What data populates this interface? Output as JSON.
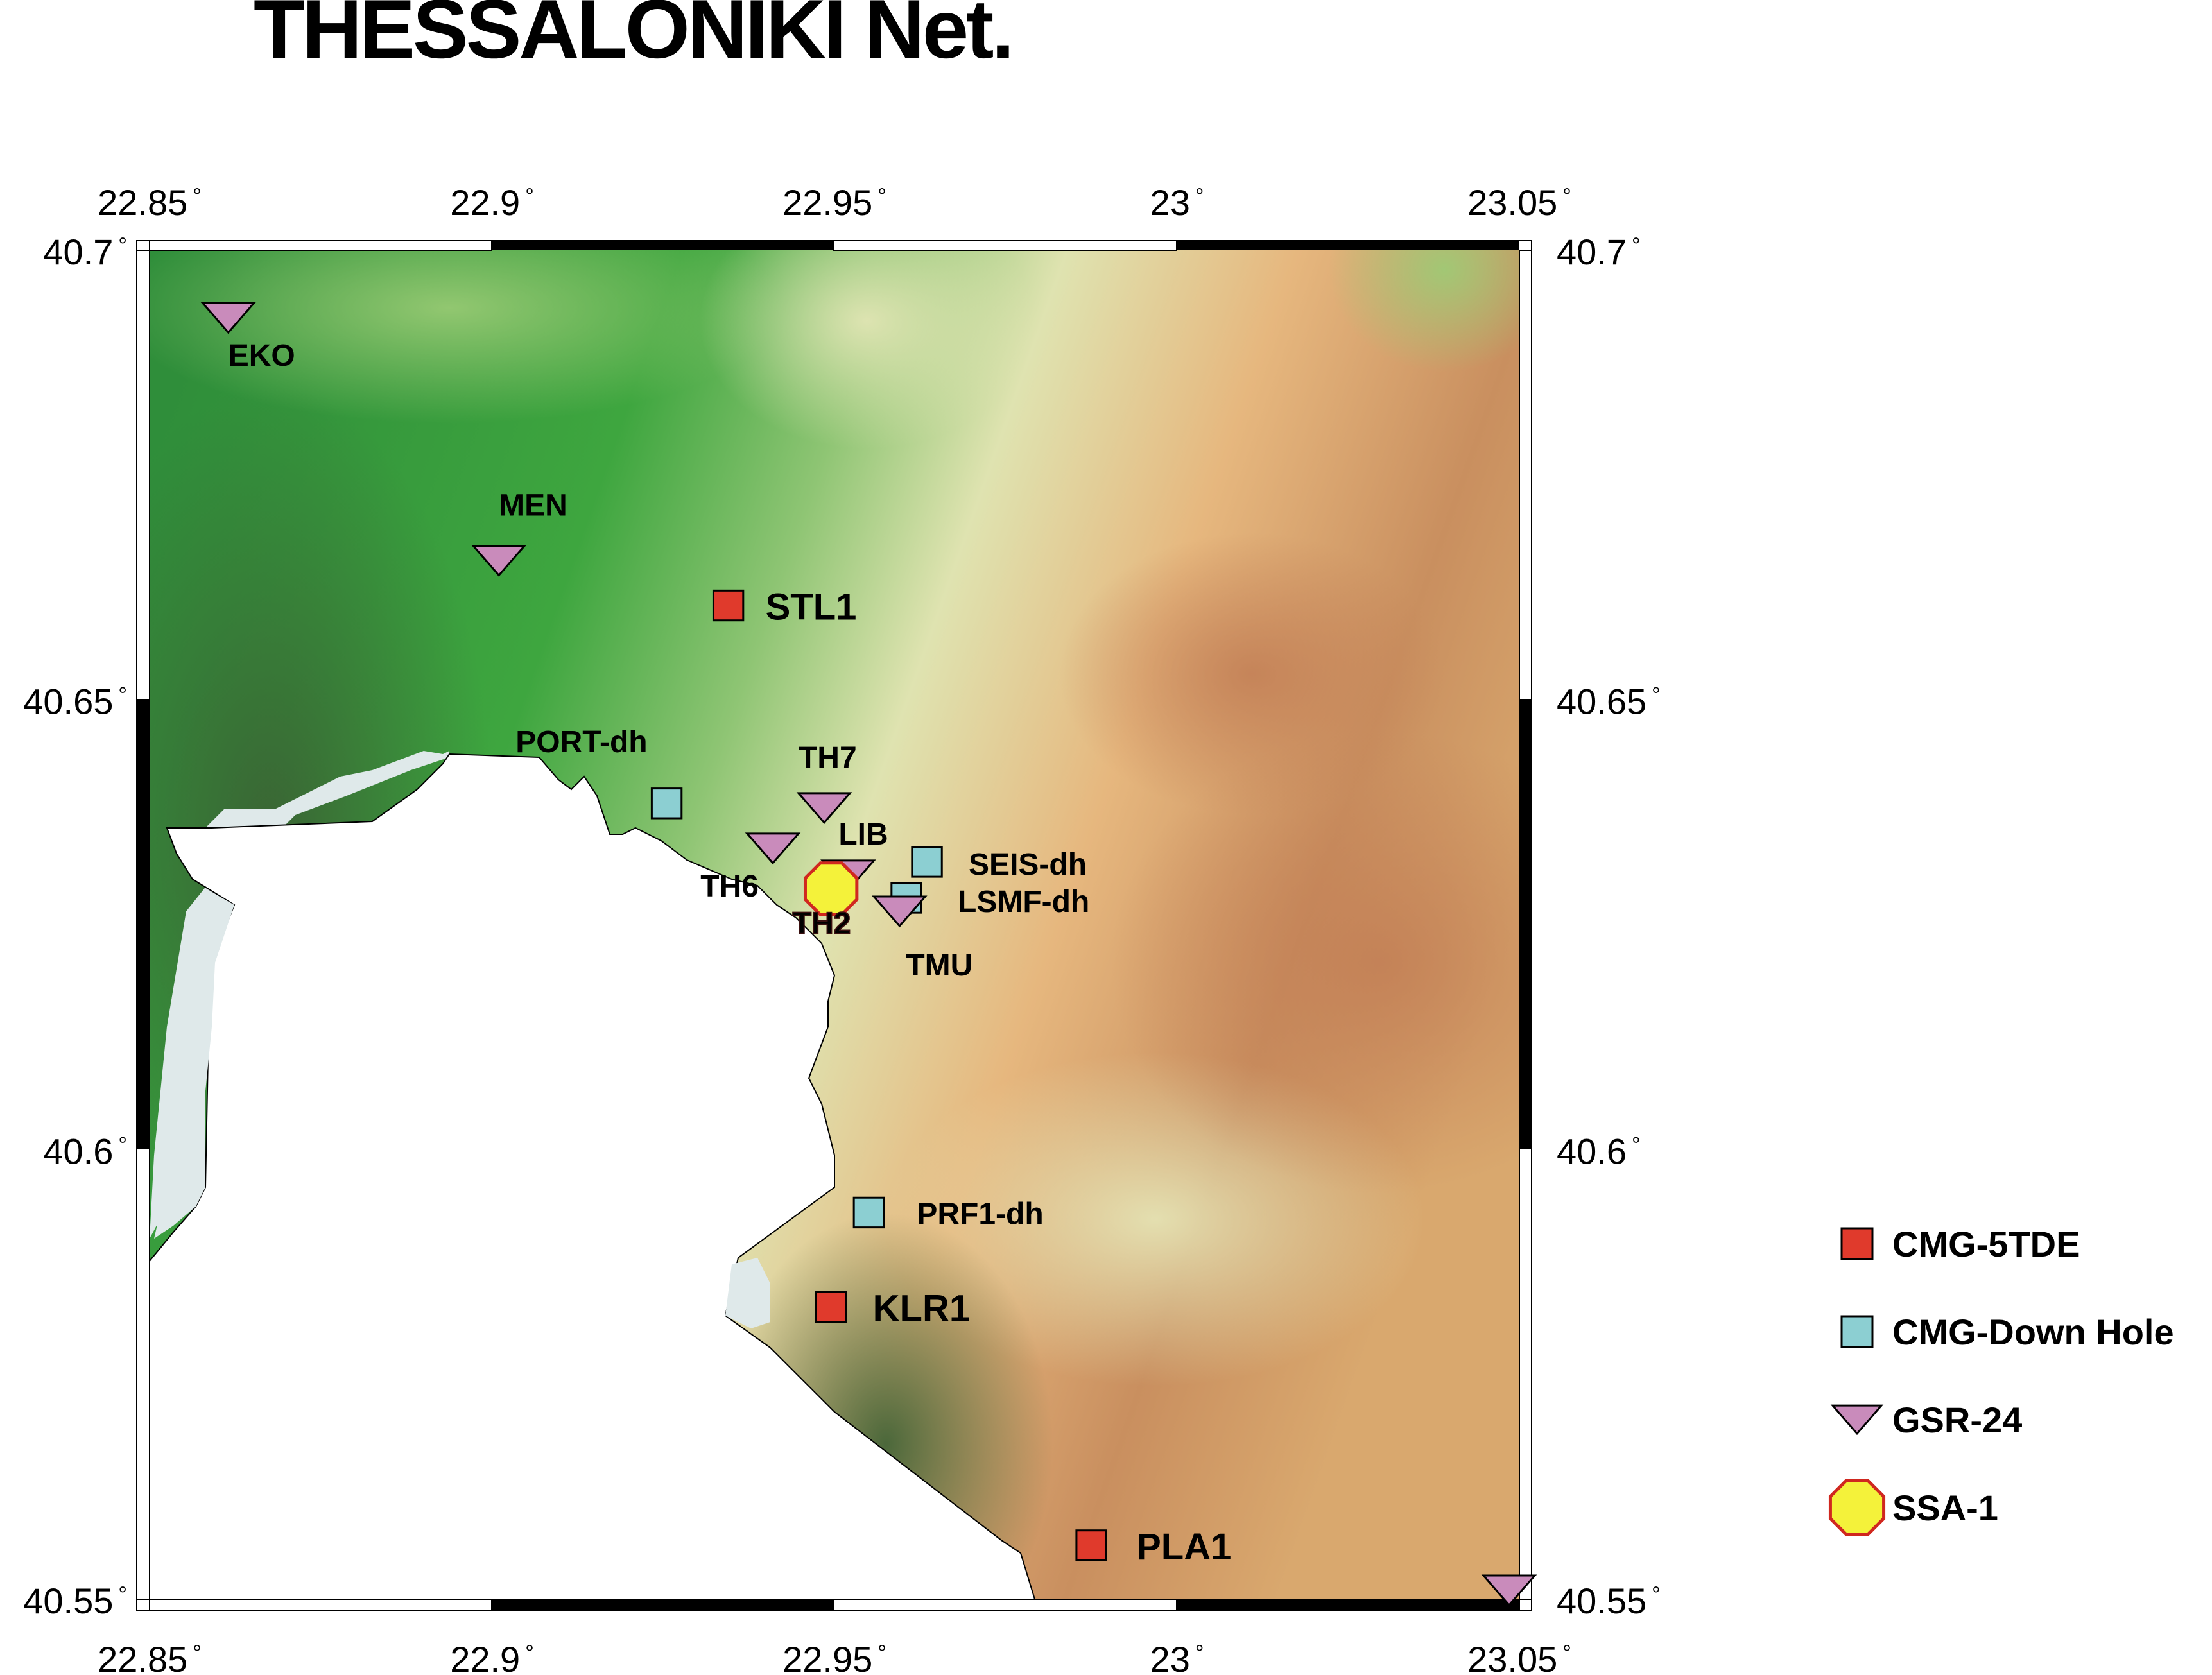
{
  "title": "THESSALONIKI Net.",
  "map": {
    "lon_range": [
      22.85,
      23.05
    ],
    "lat_range": [
      40.55,
      40.7
    ],
    "x_ticks": [
      {
        "value": 22.85,
        "label": "22.85"
      },
      {
        "value": 22.9,
        "label": "22.9"
      },
      {
        "value": 22.95,
        "label": "22.95"
      },
      {
        "value": 23.0,
        "label": "23"
      },
      {
        "value": 23.05,
        "label": "23.05"
      }
    ],
    "y_ticks": [
      {
        "value": 40.7,
        "label": "40.7"
      },
      {
        "value": 40.65,
        "label": "40.65"
      },
      {
        "value": 40.6,
        "label": "40.6"
      },
      {
        "value": 40.55,
        "label": "40.55"
      }
    ],
    "degree_symbol": "°",
    "colors": {
      "lowland_dark": "#3a6b34",
      "lowland_green": "#3ea63f",
      "mid_green": "#8fc574",
      "pale": "#dfe3b0",
      "tan": "#e6b77e",
      "brown": "#c98f5f",
      "sea": "#ffffff",
      "shoal": "#dfe9ea"
    }
  },
  "stations": [
    {
      "id": "EKO",
      "label": "EKO",
      "type": "GSR-24",
      "lon": 22.8615,
      "lat": 40.6925
    },
    {
      "id": "MEN",
      "label": "MEN",
      "type": "GSR-24",
      "lon": 22.901,
      "lat": 40.6655
    },
    {
      "id": "STL1",
      "label": "STL1",
      "type": "CMG-5TDE",
      "lon": 22.9345,
      "lat": 40.6605
    },
    {
      "id": "PORT-dh",
      "label": "PORT-dh",
      "type": "CMG-Down Hole",
      "lon": 22.9255,
      "lat": 40.6385
    },
    {
      "id": "TH7",
      "label": "TH7",
      "type": "GSR-24",
      "lon": 22.9485,
      "lat": 40.638
    },
    {
      "id": "TH6",
      "label": "TH6",
      "type": "GSR-24",
      "lon": 22.941,
      "lat": 40.6335
    },
    {
      "id": "LIB",
      "label": "LIB",
      "type": "GSR-24",
      "lon": 22.952,
      "lat": 40.6305
    },
    {
      "id": "SEIS-dh",
      "label": "SEIS-dh",
      "type": "CMG-Down Hole",
      "lon": 22.9635,
      "lat": 40.632
    },
    {
      "id": "LSMF-dh",
      "label": "LSMF-dh",
      "type": "CMG-Down Hole",
      "lon": 22.9605,
      "lat": 40.628
    },
    {
      "id": "TH2",
      "label": "TH2",
      "type": "SSA-1",
      "lon": 22.9495,
      "lat": 40.629
    },
    {
      "id": "TMU",
      "label": "TMU",
      "type": "GSR-24",
      "lon": 22.9595,
      "lat": 40.6265
    },
    {
      "id": "PRF1-dh",
      "label": "PRF1-dh",
      "type": "CMG-Down Hole",
      "lon": 22.955,
      "lat": 40.593
    },
    {
      "id": "KLR1",
      "label": "KLR1",
      "type": "CMG-5TDE",
      "lon": 22.9495,
      "lat": 40.5825
    },
    {
      "id": "PLA1",
      "label": "PLA1",
      "type": "CMG-5TDE",
      "lon": 22.9875,
      "lat": 40.556
    },
    {
      "id": "EDGE",
      "label": "",
      "type": "GSR-24",
      "lon": 23.0485,
      "lat": 40.551
    }
  ],
  "legend": [
    {
      "label": "CMG-5TDE",
      "symbol": "red-square",
      "color": "#e03a2c"
    },
    {
      "label": "CMG-Down Hole",
      "symbol": "blue-square",
      "color": "#8ccfd2"
    },
    {
      "label": "GSR-24",
      "symbol": "purple-triangle",
      "color": "#c98bbb"
    },
    {
      "label": "SSA-1",
      "symbol": "yellow-octagon",
      "color": "#f4f23a"
    }
  ]
}
